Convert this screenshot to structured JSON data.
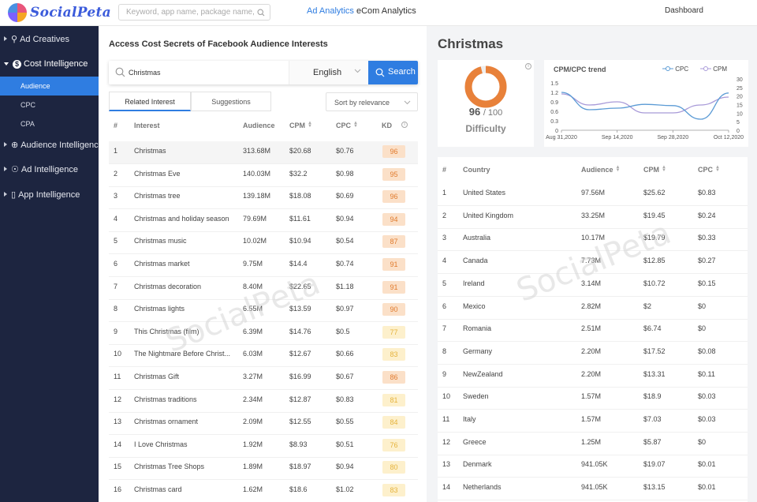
{
  "app": {
    "name": "SocialPeta",
    "dashboard_label": "Dashboard",
    "watermark": "SocialPeta"
  },
  "topnav": {
    "search_placeholder": "Keyword, app name, package name, text c",
    "links": [
      "Ad Analytics",
      "eCom Analytics"
    ]
  },
  "sidebar": {
    "items": [
      {
        "label": "Ad Creatives",
        "icon": "bulb-icon"
      },
      {
        "label": "Cost Intelligence",
        "icon": "dollar-icon"
      },
      {
        "label": "Audience Intelligence",
        "icon": "target-icon"
      },
      {
        "label": "Ad Intelligence",
        "icon": "trophy-icon"
      },
      {
        "label": "App Intelligence",
        "icon": "phone-icon"
      }
    ],
    "sub_items": [
      "Audience",
      "CPC",
      "CPA"
    ],
    "active_sub": "Audience"
  },
  "left": {
    "title": "Access Cost Secrets of Facebook Audience Interests",
    "search_value": "Christmas",
    "language": "English",
    "search_button": "Search",
    "tabs": [
      "Related Interest",
      "Suggestions"
    ],
    "sort": "Sort by relevance",
    "columns": [
      "#",
      "Interest",
      "Audience",
      "CPM",
      "CPC",
      "KD"
    ],
    "rows": [
      {
        "n": "1",
        "interest": "Christmas",
        "audience": "313.68M",
        "cpm": "$20.68",
        "cpc": "$0.76",
        "kd": "96"
      },
      {
        "n": "2",
        "interest": "Christmas Eve",
        "audience": "140.03M",
        "cpm": "$32.2",
        "cpc": "$0.98",
        "kd": "95"
      },
      {
        "n": "3",
        "interest": "Christmas tree",
        "audience": "139.18M",
        "cpm": "$18.08",
        "cpc": "$0.69",
        "kd": "96"
      },
      {
        "n": "4",
        "interest": "Christmas and holiday season",
        "audience": "79.69M",
        "cpm": "$11.61",
        "cpc": "$0.94",
        "kd": "94"
      },
      {
        "n": "5",
        "interest": "Christmas music",
        "audience": "10.02M",
        "cpm": "$10.94",
        "cpc": "$0.54",
        "kd": "87"
      },
      {
        "n": "6",
        "interest": "Christmas market",
        "audience": "9.75M",
        "cpm": "$14.4",
        "cpc": "$0.74",
        "kd": "91"
      },
      {
        "n": "7",
        "interest": "Christmas decoration",
        "audience": "8.40M",
        "cpm": "$22.65",
        "cpc": "$1.18",
        "kd": "91"
      },
      {
        "n": "8",
        "interest": "Christmas lights",
        "audience": "6.55M",
        "cpm": "$13.59",
        "cpc": "$0.97",
        "kd": "90"
      },
      {
        "n": "9",
        "interest": "This Christmas (film)",
        "audience": "6.39M",
        "cpm": "$14.76",
        "cpc": "$0.5",
        "kd": "77"
      },
      {
        "n": "10",
        "interest": "The Nightmare Before Christ...",
        "audience": "6.03M",
        "cpm": "$12.67",
        "cpc": "$0.66",
        "kd": "83"
      },
      {
        "n": "11",
        "interest": "Christmas Gift",
        "audience": "3.27M",
        "cpm": "$16.99",
        "cpc": "$0.67",
        "kd": "86"
      },
      {
        "n": "12",
        "interest": "Christmas traditions",
        "audience": "2.34M",
        "cpm": "$12.87",
        "cpc": "$0.83",
        "kd": "81"
      },
      {
        "n": "13",
        "interest": "Christmas ornament",
        "audience": "2.09M",
        "cpm": "$12.55",
        "cpc": "$0.55",
        "kd": "84"
      },
      {
        "n": "14",
        "interest": "I Love Christmas",
        "audience": "1.92M",
        "cpm": "$8.93",
        "cpc": "$0.51",
        "kd": "76"
      },
      {
        "n": "15",
        "interest": "Christmas Tree Shops",
        "audience": "1.89M",
        "cpm": "$18.97",
        "cpc": "$0.94",
        "kd": "80"
      },
      {
        "n": "16",
        "interest": "Christmas card",
        "audience": "1.62M",
        "cpm": "$18.6",
        "cpc": "$1.02",
        "kd": "83"
      }
    ]
  },
  "right": {
    "title": "Christmas",
    "difficulty": {
      "score": "96",
      "max": "/ 100",
      "label": "Difficulty",
      "fraction": 0.96
    },
    "trend": {
      "title": "CPM/CPC trend",
      "legend": [
        "CPC",
        "CPM"
      ],
      "cpc_color": "#5b9bd5",
      "cpm_color": "#a89ad8"
    },
    "columns": [
      "#",
      "Country",
      "Audience",
      "CPM",
      "CPC"
    ],
    "rows": [
      {
        "n": "1",
        "country": "United States",
        "audience": "97.56M",
        "cpm": "$25.62",
        "cpc": "$0.83"
      },
      {
        "n": "2",
        "country": "United Kingdom",
        "audience": "33.25M",
        "cpm": "$19.45",
        "cpc": "$0.24"
      },
      {
        "n": "3",
        "country": "Australia",
        "audience": "10.17M",
        "cpm": "$19.79",
        "cpc": "$0.33"
      },
      {
        "n": "4",
        "country": "Canada",
        "audience": "7.73M",
        "cpm": "$12.85",
        "cpc": "$0.27"
      },
      {
        "n": "5",
        "country": "Ireland",
        "audience": "3.14M",
        "cpm": "$10.72",
        "cpc": "$0.15"
      },
      {
        "n": "6",
        "country": "Mexico",
        "audience": "2.82M",
        "cpm": "$2",
        "cpc": "$0"
      },
      {
        "n": "7",
        "country": "Romania",
        "audience": "2.51M",
        "cpm": "$6.74",
        "cpc": "$0"
      },
      {
        "n": "8",
        "country": "Germany",
        "audience": "2.20M",
        "cpm": "$17.52",
        "cpc": "$0.08"
      },
      {
        "n": "9",
        "country": "NewZealand",
        "audience": "2.20M",
        "cpm": "$13.31",
        "cpc": "$0.11"
      },
      {
        "n": "10",
        "country": "Sweden",
        "audience": "1.57M",
        "cpm": "$18.9",
        "cpc": "$0.03"
      },
      {
        "n": "11",
        "country": "Italy",
        "audience": "1.57M",
        "cpm": "$7.03",
        "cpc": "$0.03"
      },
      {
        "n": "12",
        "country": "Greece",
        "audience": "1.25M",
        "cpm": "$5.87",
        "cpc": "$0"
      },
      {
        "n": "13",
        "country": "Denmark",
        "audience": "941.05K",
        "cpm": "$19.07",
        "cpc": "$0.01"
      },
      {
        "n": "14",
        "country": "Netherlands",
        "audience": "941.05K",
        "cpm": "$13.15",
        "cpc": "$0.01"
      }
    ]
  },
  "chart_data": {
    "type": "line",
    "title": "CPM/CPC trend",
    "x": [
      "Aug 31,2020",
      "Sep 7,2020",
      "Sep 14,2020",
      "Sep 21,2020",
      "Sep 28,2020",
      "Oct 5,2020",
      "Oct 12,2020"
    ],
    "x_ticks": [
      "Aug 31,2020",
      "Sep 14,2020",
      "Sep 28,2020",
      "Oct 12,2020"
    ],
    "series": [
      {
        "name": "CPC",
        "axis": "left",
        "values": [
          1.2,
          0.65,
          0.7,
          0.82,
          0.78,
          0.35,
          1.18
        ]
      },
      {
        "name": "CPM",
        "axis": "right",
        "values": [
          23,
          16,
          18,
          11,
          11,
          16,
          21
        ]
      }
    ],
    "ylim_left": [
      0,
      1.5
    ],
    "yticks_left": [
      "1.5",
      "1.2",
      "0.9",
      "0.6",
      "0.3",
      "0"
    ],
    "ylim_right": [
      0,
      30
    ],
    "yticks_right": [
      "30",
      "25",
      "20",
      "15",
      "10",
      "5",
      "0"
    ]
  }
}
